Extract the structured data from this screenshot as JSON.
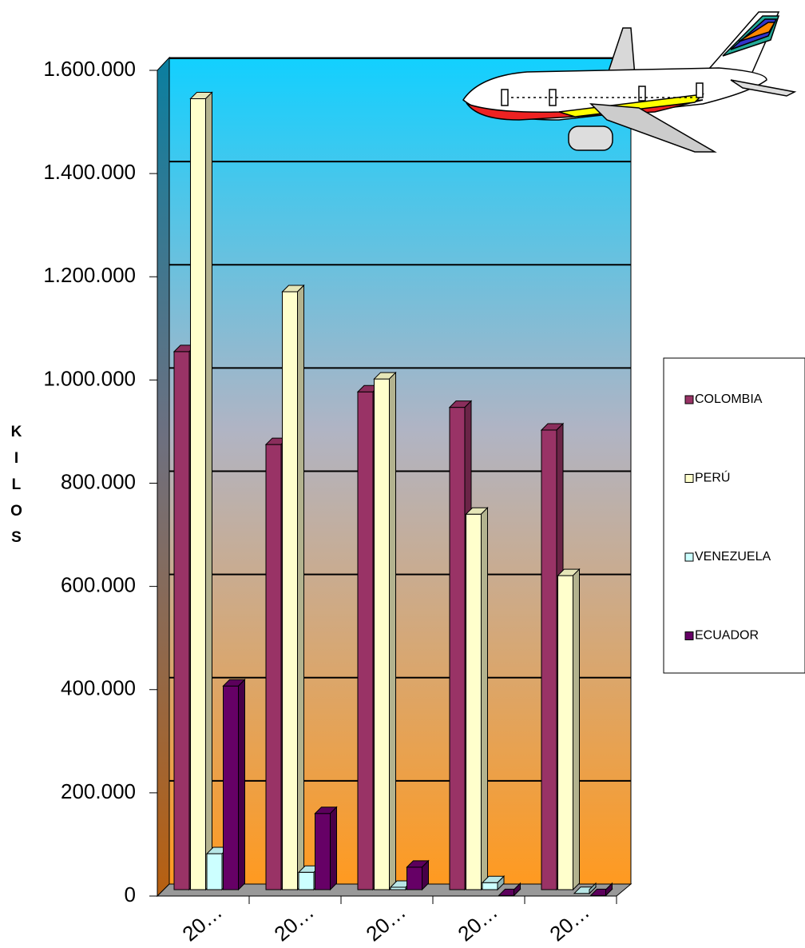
{
  "chart_data": {
    "type": "bar3d",
    "y_label": "KILOS",
    "categories": [
      "20…",
      "20…",
      "20…",
      "20…",
      "20…"
    ],
    "series": [
      {
        "name": "COLOMBIA",
        "color": "#993366",
        "values": [
          1055000,
          875000,
          977000,
          947000,
          903000
        ]
      },
      {
        "name": "PERÚ",
        "color": "#FFFFCC",
        "values": [
          1545000,
          1171000,
          1002000,
          740000,
          621000
        ]
      },
      {
        "name": "VENEZUELA",
        "color": "#CCFFFF",
        "values": [
          82000,
          46000,
          17000,
          26000,
          5000
        ]
      },
      {
        "name": "ECUADOR",
        "color": "#660066",
        "values": [
          407000,
          160000,
          56000,
          1000,
          1000
        ]
      }
    ],
    "ylim": [
      0,
      1600000
    ],
    "yticks": [
      0,
      {
        "value": 200000,
        "label": "200.000"
      },
      {
        "value": 400000,
        "label": "400.000"
      },
      {
        "value": 600000,
        "label": "600.000"
      },
      {
        "value": 800000,
        "label": "800.000"
      },
      {
        "value": 1000000,
        "label": "1.000.000"
      },
      {
        "value": 1200000,
        "label": "1.200.000"
      },
      {
        "value": 1400000,
        "label": "1.400.000"
      },
      {
        "value": 1600000,
        "label": "1.600.000"
      }
    ],
    "grid": true,
    "legend": "right"
  }
}
